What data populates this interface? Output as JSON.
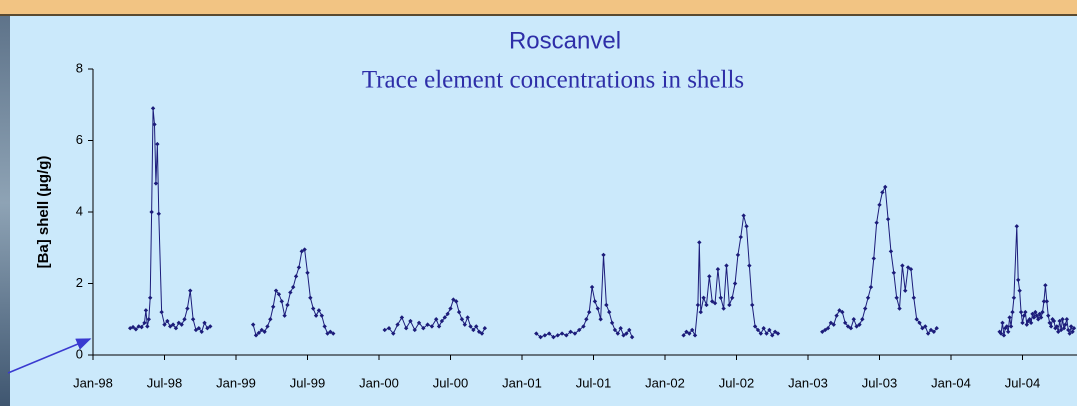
{
  "chart_data": {
    "type": "line",
    "title": "Roscanvel",
    "subtitle": "Trace element concentrations in shells",
    "y_label": "[Ba] shell (µg/g)",
    "color": "#1c1c7a",
    "x": [
      1998.26,
      1998.28,
      1998.3,
      1998.32,
      1998.34,
      1998.36,
      1998.37,
      1998.38,
      1998.39,
      1998.4,
      1998.41,
      1998.42,
      1998.43,
      1998.44,
      1998.45,
      1998.46,
      1998.48,
      1998.5,
      1998.52,
      1998.54,
      1998.56,
      1998.58,
      1998.6,
      1998.62,
      1998.64,
      1998.66,
      1998.68,
      1998.7,
      1998.72,
      1998.74,
      1998.76,
      1998.78,
      1998.8,
      1998.82,
      1999.0,
      1999.12,
      1999.14,
      1999.16,
      1999.18,
      1999.2,
      1999.22,
      1999.24,
      1999.26,
      1999.28,
      1999.3,
      1999.32,
      1999.34,
      1999.36,
      1999.38,
      1999.4,
      1999.42,
      1999.44,
      1999.46,
      1999.48,
      1999.5,
      1999.52,
      1999.54,
      1999.56,
      1999.58,
      1999.6,
      1999.62,
      1999.64,
      1999.66,
      1999.68,
      2000.0,
      2000.04,
      2000.07,
      2000.1,
      2000.13,
      2000.16,
      2000.19,
      2000.22,
      2000.25,
      2000.28,
      2000.31,
      2000.34,
      2000.37,
      2000.4,
      2000.42,
      2000.44,
      2000.46,
      2000.48,
      2000.5,
      2000.52,
      2000.54,
      2000.56,
      2000.58,
      2000.6,
      2000.62,
      2000.64,
      2000.66,
      2000.68,
      2000.7,
      2000.72,
      2000.74,
      2001.0,
      2001.1,
      2001.13,
      2001.16,
      2001.19,
      2001.22,
      2001.25,
      2001.28,
      2001.31,
      2001.34,
      2001.37,
      2001.4,
      2001.43,
      2001.45,
      2001.47,
      2001.49,
      2001.51,
      2001.53,
      2001.55,
      2001.57,
      2001.59,
      2001.61,
      2001.63,
      2001.65,
      2001.67,
      2001.69,
      2001.71,
      2001.73,
      2001.75,
      2001.77,
      2002.0,
      2002.13,
      2002.15,
      2002.17,
      2002.19,
      2002.21,
      2002.23,
      2002.24,
      2002.25,
      2002.27,
      2002.29,
      2002.31,
      2002.33,
      2002.35,
      2002.37,
      2002.39,
      2002.41,
      2002.43,
      2002.45,
      2002.47,
      2002.49,
      2002.51,
      2002.53,
      2002.55,
      2002.57,
      2002.59,
      2002.61,
      2002.63,
      2002.65,
      2002.67,
      2002.69,
      2002.71,
      2002.73,
      2002.75,
      2002.77,
      2002.79,
      2003.0,
      2003.1,
      2003.12,
      2003.14,
      2003.16,
      2003.18,
      2003.2,
      2003.22,
      2003.24,
      2003.26,
      2003.28,
      2003.3,
      2003.32,
      2003.34,
      2003.36,
      2003.38,
      2003.4,
      2003.42,
      2003.44,
      2003.46,
      2003.48,
      2003.5,
      2003.52,
      2003.54,
      2003.56,
      2003.58,
      2003.6,
      2003.62,
      2003.64,
      2003.66,
      2003.68,
      2003.7,
      2003.72,
      2003.74,
      2003.76,
      2003.78,
      2003.8,
      2003.82,
      2003.84,
      2003.86,
      2003.88,
      2003.9,
      2004.1,
      2004.34,
      2004.35,
      2004.36,
      2004.37,
      2004.38,
      2004.39,
      2004.4,
      2004.41,
      2004.42,
      2004.43,
      2004.44,
      2004.46,
      2004.47,
      2004.48,
      2004.49,
      2004.5,
      2004.51,
      2004.52,
      2004.53,
      2004.54,
      2004.55,
      2004.56,
      2004.57,
      2004.58,
      2004.59,
      2004.6,
      2004.61,
      2004.62,
      2004.63,
      2004.64,
      2004.65,
      2004.66,
      2004.67,
      2004.68,
      2004.69,
      2004.7,
      2004.71,
      2004.72,
      2004.73,
      2004.74,
      2004.75,
      2004.76,
      2004.77,
      2004.78,
      2004.79,
      2004.8,
      2004.81,
      2004.82,
      2004.83,
      2004.84,
      2004.85,
      2004.86
    ],
    "values": [
      0.75,
      0.78,
      0.72,
      0.8,
      0.78,
      0.9,
      1.25,
      0.8,
      1.0,
      1.6,
      4.0,
      6.9,
      6.45,
      4.8,
      5.9,
      3.95,
      1.2,
      0.85,
      0.95,
      0.8,
      0.85,
      0.75,
      0.9,
      0.85,
      1.0,
      1.3,
      1.8,
      1.0,
      0.7,
      0.75,
      0.65,
      0.9,
      0.75,
      0.8,
      null,
      0.85,
      0.55,
      0.62,
      0.7,
      0.65,
      0.8,
      1.0,
      1.35,
      1.8,
      1.7,
      1.5,
      1.1,
      1.4,
      1.75,
      1.9,
      2.2,
      2.45,
      2.9,
      2.95,
      2.3,
      1.6,
      1.3,
      1.1,
      1.25,
      1.1,
      0.8,
      0.6,
      0.65,
      0.6,
      null,
      0.7,
      0.75,
      0.6,
      0.85,
      1.05,
      0.75,
      0.95,
      0.7,
      0.9,
      0.75,
      0.85,
      0.8,
      1.0,
      0.8,
      0.95,
      1.05,
      1.15,
      1.3,
      1.55,
      1.5,
      1.2,
      1.0,
      0.85,
      1.05,
      0.8,
      0.7,
      0.8,
      0.65,
      0.6,
      0.75,
      null,
      0.6,
      0.5,
      0.55,
      0.6,
      0.5,
      0.55,
      0.6,
      0.55,
      0.65,
      0.6,
      0.7,
      0.8,
      1.0,
      1.2,
      1.9,
      1.5,
      1.3,
      1.0,
      2.8,
      1.4,
      1.2,
      0.9,
      0.7,
      0.6,
      0.75,
      0.55,
      0.6,
      0.7,
      0.5,
      null,
      0.55,
      0.65,
      0.6,
      0.7,
      0.55,
      1.4,
      3.15,
      1.2,
      1.6,
      1.4,
      2.2,
      1.5,
      1.45,
      2.4,
      1.6,
      1.3,
      2.5,
      1.4,
      1.6,
      2.0,
      2.8,
      3.3,
      3.9,
      3.6,
      2.5,
      1.4,
      0.8,
      0.7,
      0.6,
      0.75,
      0.6,
      0.7,
      0.55,
      0.65,
      0.6,
      null,
      0.65,
      0.7,
      0.75,
      0.9,
      0.85,
      1.1,
      1.25,
      1.2,
      0.9,
      0.8,
      0.75,
      1.0,
      0.8,
      0.85,
      1.0,
      1.3,
      1.6,
      1.9,
      2.7,
      3.7,
      4.2,
      4.55,
      4.7,
      3.8,
      2.9,
      2.3,
      1.6,
      1.3,
      2.5,
      1.8,
      2.45,
      2.4,
      1.6,
      1.0,
      0.9,
      0.75,
      0.8,
      0.6,
      0.7,
      0.65,
      0.75,
      null,
      0.65,
      0.6,
      0.9,
      0.55,
      0.75,
      0.8,
      0.65,
      1.05,
      0.8,
      1.2,
      1.6,
      3.6,
      2.1,
      1.8,
      1.2,
      0.9,
      1.1,
      1.2,
      0.85,
      0.95,
      1.0,
      0.9,
      1.15,
      1.05,
      1.2,
      1.1,
      1.0,
      1.15,
      1.05,
      1.2,
      1.5,
      1.95,
      1.5,
      1.1,
      0.9,
      0.8,
      1.0,
      0.95,
      0.75,
      0.8,
      0.65,
      0.95,
      0.7,
      1.0,
      0.75,
      0.85,
      1.0,
      0.7,
      0.6,
      0.8,
      0.65,
      0.75
    ],
    "xlim": [
      1998,
      2004.9
    ],
    "ylim": [
      0,
      8
    ],
    "yticks": [
      0,
      2,
      4,
      6,
      8
    ],
    "xticks": [
      {
        "value": 1998,
        "label": "Jan-98"
      },
      {
        "value": 1998.5,
        "label": "Jul-98"
      },
      {
        "value": 1999,
        "label": "Jan-99"
      },
      {
        "value": 1999.5,
        "label": "Jul-99"
      },
      {
        "value": 2000,
        "label": "Jan-00"
      },
      {
        "value": 2000.5,
        "label": "Jul-00"
      },
      {
        "value": 2001,
        "label": "Jan-01"
      },
      {
        "value": 2001.5,
        "label": "Jul-01"
      },
      {
        "value": 2002,
        "label": "Jan-02"
      },
      {
        "value": 2002.5,
        "label": "Jul-02"
      },
      {
        "value": 2003,
        "label": "Jan-03"
      },
      {
        "value": 2003.5,
        "label": "Jul-03"
      },
      {
        "value": 2004,
        "label": "Jan-04"
      },
      {
        "value": 2004.5,
        "label": "Jul-04"
      }
    ]
  }
}
